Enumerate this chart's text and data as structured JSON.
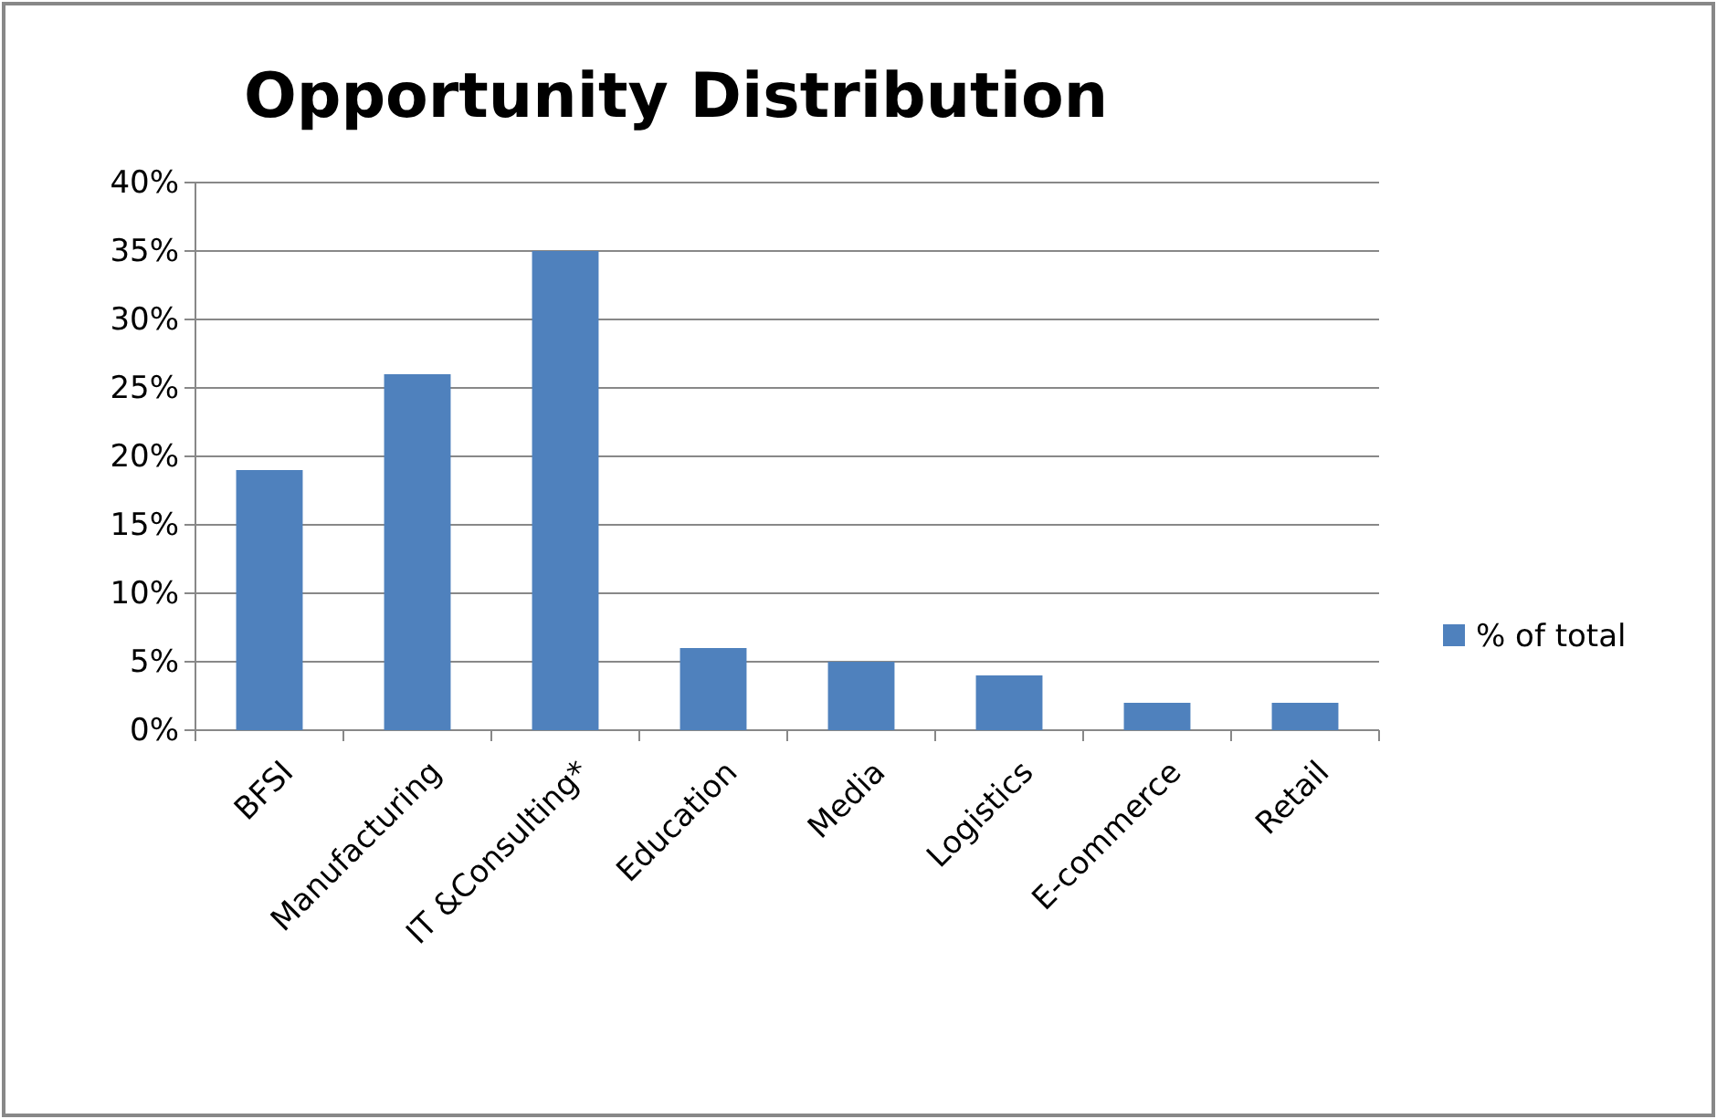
{
  "chart_data": {
    "type": "bar",
    "title": "Opportunity Distribution",
    "categories": [
      "BFSI",
      "Manufacturing",
      "IT &Consulting*",
      "Education",
      "Media",
      "Logistics",
      "E-commerce",
      "Retail"
    ],
    "series": [
      {
        "name": "% of total",
        "color": "#4f81bd",
        "values": [
          19,
          26,
          35,
          6,
          5,
          4,
          2,
          2
        ]
      }
    ],
    "ylim": [
      0,
      40
    ],
    "yticks": [
      {
        "value": 0,
        "label": "0%"
      },
      {
        "value": 5,
        "label": "5%"
      },
      {
        "value": 10,
        "label": "10%"
      },
      {
        "value": 15,
        "label": "15%"
      },
      {
        "value": 20,
        "label": "20%"
      },
      {
        "value": 25,
        "label": "25%"
      },
      {
        "value": 30,
        "label": "30%"
      },
      {
        "value": 35,
        "label": "35%"
      },
      {
        "value": 40,
        "label": "40%"
      }
    ],
    "grid": "y",
    "legend": "right"
  }
}
